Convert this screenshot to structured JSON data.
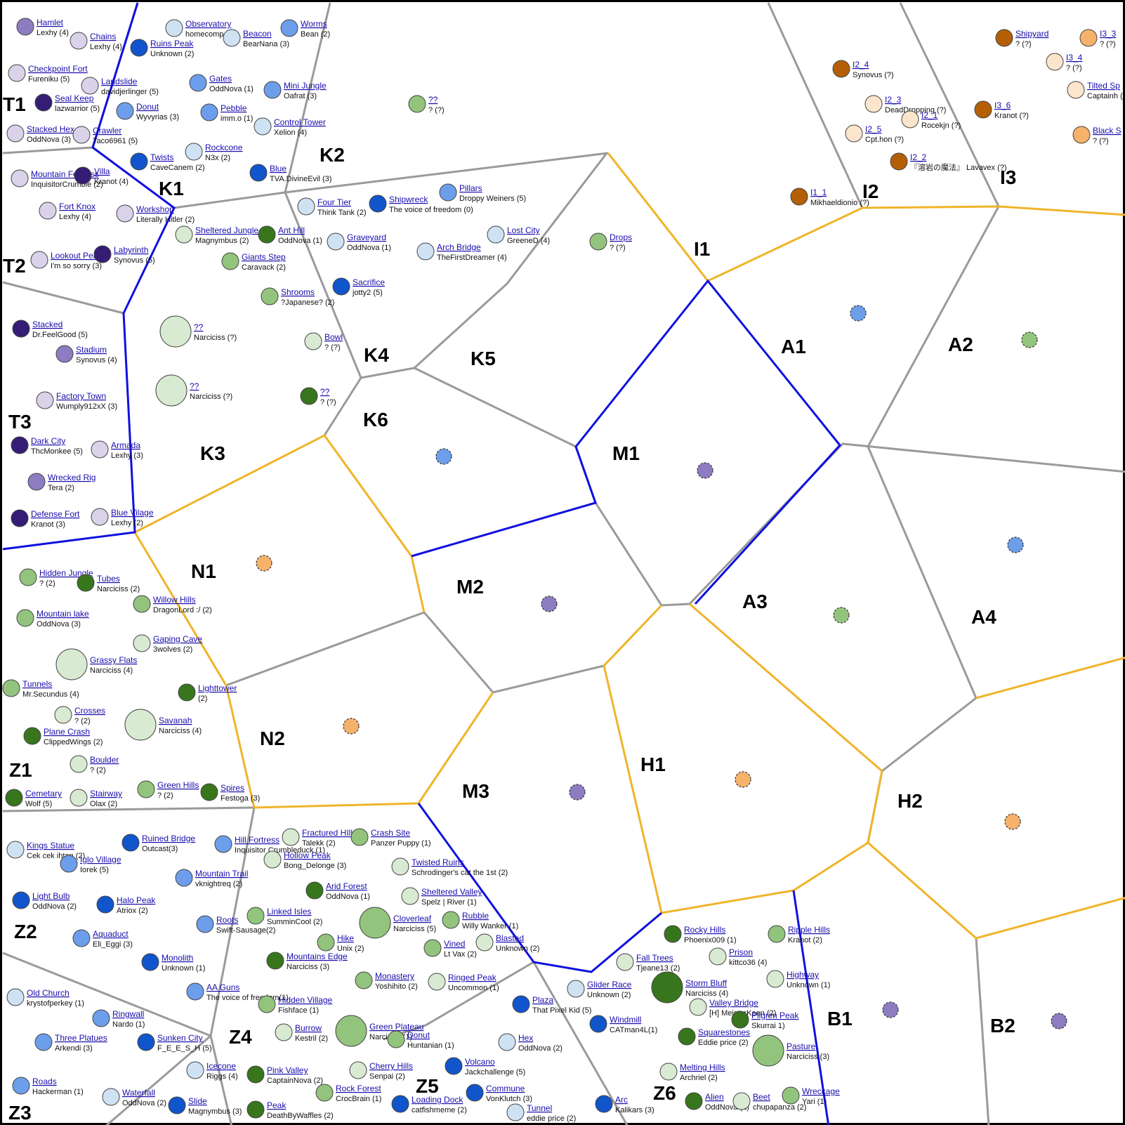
{
  "map": {
    "colors": {
      "blue_border": "#1010e0",
      "yellow_border": "#f0b429",
      "gray_border": "#9a9a9a",
      "outer_border": "#000000",
      "link_text": "#1a0dab"
    },
    "regions": [
      "T1",
      "T2",
      "T3",
      "K1",
      "K2",
      "K3",
      "K4",
      "K5",
      "K6",
      "I1",
      "I2",
      "I3",
      "A1",
      "A2",
      "A3",
      "A4",
      "M1",
      "M2",
      "M3",
      "N1",
      "N2",
      "H1",
      "H2",
      "Z1",
      "Z2",
      "Z3",
      "Z4",
      "Z5",
      "Z6",
      "B1",
      "B2"
    ],
    "locations": [
      {
        "name": "Hamlet",
        "owner": "Lexhy (4)",
        "color": "#8e7cc3"
      },
      {
        "name": "Chains",
        "owner": "Lexhy (4)",
        "color": "#d9d2e9"
      },
      {
        "name": "Observatory",
        "owner": "homecomp (2)",
        "color": "#cfe2f3"
      },
      {
        "name": "Worms",
        "owner": "Bean (2)",
        "color": "#6d9eeb"
      },
      {
        "name": "Beacon",
        "owner": "BearNana (3)",
        "color": "#cfe2f3"
      },
      {
        "name": "Ruins Peak",
        "owner": "Unknown (2)",
        "color": "#1155cc"
      },
      {
        "name": "Checkpoint Fort",
        "owner": "Fureniku (5)",
        "color": "#d9d2e9"
      },
      {
        "name": "Landslide",
        "owner": "davidjerlinger (5)",
        "color": "#d9d2e9"
      },
      {
        "name": "Gates",
        "owner": "OddNova (1)",
        "color": "#6d9eeb"
      },
      {
        "name": "Mini Jungle",
        "owner": "Oafrat (3)",
        "color": "#6d9eeb"
      },
      {
        "name": "Seal Keep",
        "owner": "lazwarrior (5)",
        "color": "#351c75"
      },
      {
        "name": "Donut",
        "owner": "Wyvyrias (3)",
        "color": "#6d9eeb"
      },
      {
        "name": "Pebble",
        "owner": "imm.o (1)",
        "color": "#6d9eeb"
      },
      {
        "name": "Control Tower",
        "owner": "Xelion (4)",
        "color": "#cfe2f3"
      },
      {
        "name": "Stacked Hex",
        "owner": "OddNova (3)",
        "color": "#d9d2e9"
      },
      {
        "name": "Crawler",
        "owner": "Taco6961 (5)",
        "color": "#d9d2e9"
      },
      {
        "name": "Rockcone",
        "owner": "N3x (2)",
        "color": "#cfe2f3"
      },
      {
        "name": "Twists",
        "owner": "CaveCanem (2)",
        "color": "#1155cc"
      },
      {
        "name": "Blue",
        "owner": "TVA.DivineEvil (3)",
        "color": "#1155cc"
      },
      {
        "name": "??",
        "owner": "? (?)",
        "color": "#93c47d"
      },
      {
        "name": "Mountain Fortress",
        "owner": "InquisitorCrumble (2)",
        "color": "#d9d2e9"
      },
      {
        "name": "Villa",
        "owner": "Kranot (4)",
        "color": "#351c75"
      },
      {
        "name": "Fort Knox",
        "owner": "Lexhy (4)",
        "color": "#d9d2e9"
      },
      {
        "name": "Workshop",
        "owner": "Literally Hitler (2)",
        "color": "#d9d2e9"
      },
      {
        "name": "Sheltered Jungle",
        "owner": "Magnymbus (2)",
        "color": "#d9ead3"
      },
      {
        "name": "Ant Hill",
        "owner": "OddNova (1)",
        "color": "#38761d"
      },
      {
        "name": "Four Tier",
        "owner": "Think Tank (2)",
        "color": "#cfe2f3"
      },
      {
        "name": "Shipwreck",
        "owner": "The voice of freedom (0)",
        "color": "#1155cc"
      },
      {
        "name": "Pillars",
        "owner": "Droppy Weiners (5)",
        "color": "#6d9eeb"
      },
      {
        "name": "Lost City",
        "owner": "GreeneD (4)",
        "color": "#cfe2f3"
      },
      {
        "name": "Graveyard",
        "owner": "OddNova (1)",
        "color": "#cfe2f3"
      },
      {
        "name": "Arch Bridge",
        "owner": "TheFirstDreamer (4)",
        "color": "#cfe2f3"
      },
      {
        "name": "Drops",
        "owner": "? (?)",
        "color": "#93c47d"
      },
      {
        "name": "Lookout Peak",
        "owner": "I'm so sorry (3)",
        "color": "#d9d2e9"
      },
      {
        "name": "Labyrinth",
        "owner": "Synovus (5)",
        "color": "#351c75"
      },
      {
        "name": "Giants Step",
        "owner": "Caravack (2)",
        "color": "#93c47d"
      },
      {
        "name": "Shrooms",
        "owner": "?Japanese? (2)",
        "color": "#93c47d"
      },
      {
        "name": "Sacrifice",
        "owner": "jotty2 (5)",
        "color": "#1155cc"
      },
      {
        "name": "Stacked",
        "owner": "Dr.FeelGood (5)",
        "color": "#351c75"
      },
      {
        "name": "??",
        "owner": "Narciciss (?)",
        "color": "#d9ead3"
      },
      {
        "name": "Bowl",
        "owner": "? (?)",
        "color": "#d9ead3"
      },
      {
        "name": "Stadium",
        "owner": "Synovus (4)",
        "color": "#8e7cc3"
      },
      {
        "name": "??",
        "owner": "Narciciss (?)",
        "color": "#d9ead3"
      },
      {
        "name": "??",
        "owner": "? (?)",
        "color": "#38761d"
      },
      {
        "name": "Factory Town",
        "owner": "Wumply912xX (3)",
        "color": "#d9d2e9"
      },
      {
        "name": "Dark City",
        "owner": "ThcMonkee (5)",
        "color": "#351c75"
      },
      {
        "name": "Armada",
        "owner": "Lexhy (3)",
        "color": "#d9d2e9"
      },
      {
        "name": "Wrecked Rig",
        "owner": "Tera (2)",
        "color": "#8e7cc3"
      },
      {
        "name": "Defense Fort",
        "owner": "Kranot (3)",
        "color": "#351c75"
      },
      {
        "name": "Blue Vilage",
        "owner": "Lexhy (2)",
        "color": "#d9d2e9"
      },
      {
        "name": "Shipyard",
        "owner": "? (?)",
        "color": "#b45f06"
      },
      {
        "name": "I3_3",
        "owner": "? (?)",
        "color": "#f6b26b"
      },
      {
        "name": "I3_4",
        "owner": "? (?)",
        "color": "#fce5cd"
      },
      {
        "name": "I2_4",
        "owner": "Synovus (?)",
        "color": "#b45f06"
      },
      {
        "name": "Tilted Sp",
        "owner": "Captainh (?)",
        "color": "#fce5cd"
      },
      {
        "name": "I2_3",
        "owner": "DeadDropping (?)",
        "color": "#fce5cd"
      },
      {
        "name": "I3_6",
        "owner": "Kranot (?)",
        "color": "#b45f06"
      },
      {
        "name": "I2_1",
        "owner": "Rocekjn (?)",
        "color": "#fce5cd"
      },
      {
        "name": "I2_5",
        "owner": "Cpt.hon (?)",
        "color": "#fce5cd"
      },
      {
        "name": "Black S",
        "owner": "? (?)",
        "color": "#f6b26b"
      },
      {
        "name": "I2_2",
        "owner": "『溶岩の魔法』 Lavavex (?)",
        "color": "#b45f06"
      },
      {
        "name": "I1_1",
        "owner": "Mikhaeldionio (?)",
        "color": "#b45f06"
      },
      {
        "name": "Hidden Jungle",
        "owner": "? (2)",
        "color": "#93c47d"
      },
      {
        "name": "Tubes",
        "owner": "Narciciss (2)",
        "color": "#38761d"
      },
      {
        "name": "Willow Hills",
        "owner": "DragonLord :/ (2)",
        "color": "#93c47d"
      },
      {
        "name": "Mountain lake",
        "owner": "OddNova (3)",
        "color": "#93c47d"
      },
      {
        "name": "Gaping Cave",
        "owner": "3wolves (2)",
        "color": "#d9ead3"
      },
      {
        "name": "Grassy Flats",
        "owner": "Narciciss (4)",
        "color": "#d9ead3"
      },
      {
        "name": "Tunnels",
        "owner": "Mr.Secundus (4)",
        "color": "#93c47d"
      },
      {
        "name": "Lighttower",
        "owner": "(2)",
        "color": "#38761d"
      },
      {
        "name": "Crosses",
        "owner": "? (2)",
        "color": "#d9ead3"
      },
      {
        "name": "Savanah",
        "owner": "Narciciss (4)",
        "color": "#d9ead3"
      },
      {
        "name": "Plane Crash",
        "owner": "ClippedWings (2)",
        "color": "#38761d"
      },
      {
        "name": "Boulder",
        "owner": "? (2)",
        "color": "#d9ead3"
      },
      {
        "name": "Cemetary",
        "owner": "Wolf (5)",
        "color": "#38761d"
      },
      {
        "name": "Stairway",
        "owner": "Olax (2)",
        "color": "#d9ead3"
      },
      {
        "name": "Green Hills",
        "owner": "? (2)",
        "color": "#93c47d"
      },
      {
        "name": "Spires",
        "owner": "Festoga (3)",
        "color": "#38761d"
      },
      {
        "name": "Kings Statue",
        "owner": "Cek cek ihtan (2)",
        "color": "#cfe2f3"
      },
      {
        "name": "Ruined Bridge",
        "owner": "Outcast(3)",
        "color": "#1155cc"
      },
      {
        "name": "Hill Fortress",
        "owner": "Inquisitor Crumbleduck (1)",
        "color": "#6d9eeb"
      },
      {
        "name": "Fractured HIlls",
        "owner": "Talekk (2)",
        "color": "#d9ead3"
      },
      {
        "name": "Crash Site",
        "owner": "Panzer Puppy (1)",
        "color": "#93c47d"
      },
      {
        "name": "Iglo Village",
        "owner": "Iorek (5)",
        "color": "#6d9eeb"
      },
      {
        "name": "Hollow Peak",
        "owner": "Bong_Delonge (3)",
        "color": "#d9ead3"
      },
      {
        "name": "Twisted Ruins",
        "owner": "Schrodinger's cat the 1st (2)",
        "color": "#d9ead3"
      },
      {
        "name": "Mountain Trail",
        "owner": "vknightreq (2)",
        "color": "#6d9eeb"
      },
      {
        "name": "Light Bulb",
        "owner": "OddNova (2)",
        "color": "#1155cc"
      },
      {
        "name": "Halo Peak",
        "owner": "Atriox (2)",
        "color": "#1155cc"
      },
      {
        "name": "Arid Forest",
        "owner": "OddNova (1)",
        "color": "#38761d"
      },
      {
        "name": "Sheltered Valley",
        "owner": "Spelz | River (1)",
        "color": "#d9ead3"
      },
      {
        "name": "Roots",
        "owner": "Swift-Sausage(2)",
        "color": "#6d9eeb"
      },
      {
        "name": "Linked Isles",
        "owner": "SumminCool (2)",
        "color": "#93c47d"
      },
      {
        "name": "Cloverleaf",
        "owner": "Narciciss (5)",
        "color": "#93c47d"
      },
      {
        "name": "Rubble",
        "owner": "Willy Wanker (1)",
        "color": "#93c47d"
      },
      {
        "name": "Aquaduct",
        "owner": "Eli_Eggi (3)",
        "color": "#6d9eeb"
      },
      {
        "name": "Hike",
        "owner": "Unix (2)",
        "color": "#93c47d"
      },
      {
        "name": "Vined",
        "owner": "Lt Vax (2)",
        "color": "#93c47d"
      },
      {
        "name": "Blasted",
        "owner": "Unknown (2)",
        "color": "#d9ead3"
      },
      {
        "name": "Monolith",
        "owner": "Unknown (1)",
        "color": "#1155cc"
      },
      {
        "name": "Mountains Edge",
        "owner": "Narciciss (3)",
        "color": "#38761d"
      },
      {
        "name": "Old Church",
        "owner": "krystofperkey (1)",
        "color": "#cfe2f3"
      },
      {
        "name": "AA Guns",
        "owner": "The voice of freedom(1)",
        "color": "#6d9eeb"
      },
      {
        "name": "Monastery",
        "owner": "Yoshihito (2)",
        "color": "#93c47d"
      },
      {
        "name": "Ringed Peak",
        "owner": "Uncommon (1)",
        "color": "#d9ead3"
      },
      {
        "name": "Hidden Village",
        "owner": "Fishface (1)",
        "color": "#93c47d"
      },
      {
        "name": "Ringwall",
        "owner": "Nardo (1)",
        "color": "#6d9eeb"
      },
      {
        "name": "Burrow",
        "owner": "Kestril (2)",
        "color": "#d9ead3"
      },
      {
        "name": "Green Plateau",
        "owner": "Narciciss (1)",
        "color": "#93c47d"
      },
      {
        "name": "Three Platues",
        "owner": "Arkendi (3)",
        "color": "#6d9eeb"
      },
      {
        "name": "Sunken City",
        "owner": "F_E_E_S_H (5)",
        "color": "#1155cc"
      },
      {
        "name": "Donut",
        "owner": "Huntanian (1)",
        "color": "#93c47d"
      },
      {
        "name": "Hex",
        "owner": "OddNova (2)",
        "color": "#cfe2f3"
      },
      {
        "name": "Icecone",
        "owner": "Riggs (4)",
        "color": "#cfe2f3"
      },
      {
        "name": "Pink Valley",
        "owner": "CaptainNova (2)",
        "color": "#38761d"
      },
      {
        "name": "Cherry Hills",
        "owner": "Senpai (2)",
        "color": "#d9ead3"
      },
      {
        "name": "Volcano",
        "owner": "Jackchallenge (5)",
        "color": "#1155cc"
      },
      {
        "name": "Roads",
        "owner": "Hackerman (1)",
        "color": "#6d9eeb"
      },
      {
        "name": "Waterfall",
        "owner": "OddNova (2)",
        "color": "#cfe2f3"
      },
      {
        "name": "Rock Forest",
        "owner": "CrocBrain (1)",
        "color": "#93c47d"
      },
      {
        "name": "Commune",
        "owner": "VonKlutch (3)",
        "color": "#1155cc"
      },
      {
        "name": "Slide",
        "owner": "Magnymbus (3)",
        "color": "#1155cc"
      },
      {
        "name": "Peak",
        "owner": "DeathByWaffles (2)",
        "color": "#38761d"
      },
      {
        "name": "Loading Dock",
        "owner": "catfishmeme (2)",
        "color": "#1155cc"
      },
      {
        "name": "Tunnel",
        "owner": "eddie price (2)",
        "color": "#cfe2f3"
      },
      {
        "name": "Arc",
        "owner": "Kalikars (3)",
        "color": "#1155cc"
      },
      {
        "name": "Rocky Hills",
        "owner": "Phoenix009 (1)",
        "color": "#38761d"
      },
      {
        "name": "Ripple Hills",
        "owner": "Kranot (2)",
        "color": "#93c47d"
      },
      {
        "name": "Fall Trees",
        "owner": "Tjeane13 (2)",
        "color": "#d9ead3"
      },
      {
        "name": "Prison",
        "owner": "kittco36 (4)",
        "color": "#d9ead3"
      },
      {
        "name": "Storm Bluff",
        "owner": "Narciciss (4)",
        "color": "#38761d"
      },
      {
        "name": "Highway",
        "owner": "Unknown (1)",
        "color": "#d9ead3"
      },
      {
        "name": "Plaza",
        "owner": "That Pixel Kid (5)",
        "color": "#1155cc"
      },
      {
        "name": "Glider Race",
        "owner": "Unknown (2)",
        "color": "#cfe2f3"
      },
      {
        "name": "Valley Bridge",
        "owner": "[H] MeisterKeen (2)",
        "color": "#d9ead3"
      },
      {
        "name": "Windmill",
        "owner": "CATman4L(1)",
        "color": "#1155cc"
      },
      {
        "name": "Pilgrim Peak",
        "owner": "Skurrai 1)",
        "color": "#38761d"
      },
      {
        "name": "Squarestones",
        "owner": "Eddie price (2)",
        "color": "#38761d"
      },
      {
        "name": "Pasture",
        "owner": "Narciciss (3)",
        "color": "#93c47d"
      },
      {
        "name": "Melting Hills",
        "owner": "Archriel (2)",
        "color": "#d9ead3"
      },
      {
        "name": "Wreckage",
        "owner": "Yari (1)",
        "color": "#93c47d"
      },
      {
        "name": "Alien",
        "owner": "OddNova (1)",
        "color": "#38761d"
      },
      {
        "name": "Beet",
        "owner": "chupapanza (2)",
        "color": "#d9ead3"
      }
    ],
    "centroid_colors": [
      "#6d9eeb",
      "#93c47d",
      "#6d9eeb",
      "#8e7cc3",
      "#f6b26b",
      "#8e7cc3",
      "#93c47d",
      "#6d9eeb",
      "#f6b26b",
      "#8e7cc3",
      "#f6b26b",
      "#f6b26b",
      "#8e7cc3",
      "#8e7cc3"
    ]
  }
}
